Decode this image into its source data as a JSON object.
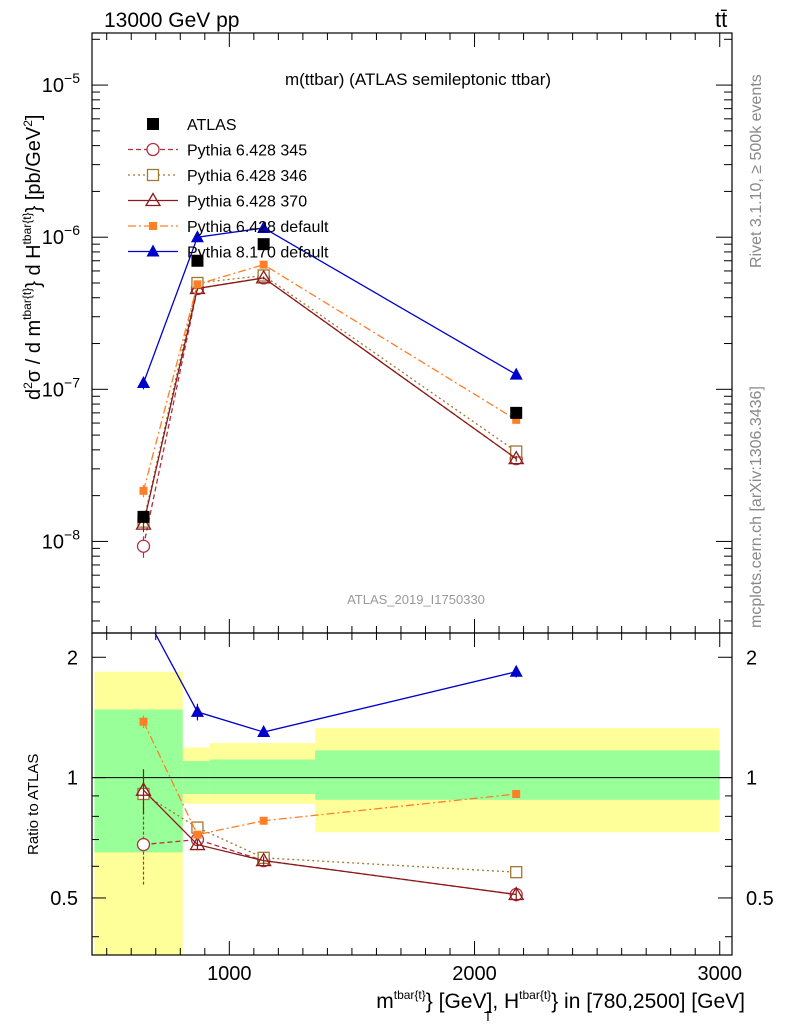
{
  "header": {
    "left": "13000 GeV pp",
    "right": "tt̄"
  },
  "side": {
    "top": "Rivet 3.1.10, ≥ 500k events",
    "bottom": "mcplots.cern.ch [arXiv:1306.3436]"
  },
  "chart_data": {
    "type": "scatter",
    "title": "m(ttbar) (ATLAS semileptonic ttbar)",
    "watermark": "ATLAS_2019_I1750330",
    "xlabel": "m^{tbar{t}} [GeV], H_T^{tbar{t}} in [780,2500] [GeV]",
    "ylabel": "d²σ / d m^{tbar{t}} d H_T^{tbar{t}} [pb/GeV²]",
    "ratio_ylabel": "Ratio to ATLAS",
    "xlim": [
      440,
      3050
    ],
    "ylim": [
      2.5e-09,
      2.2e-05
    ],
    "yscale": "log",
    "ratio_ylim": [
      0.36,
      2.3
    ],
    "x_ticks": [
      1000,
      2000,
      3000
    ],
    "bins": [
      [
        450,
        810
      ],
      [
        810,
        920
      ],
      [
        920,
        1350
      ],
      [
        1350,
        3000
      ]
    ],
    "x": [
      650,
      870,
      1140,
      2170
    ],
    "band_inner": [
      [
        0.65,
        1.48
      ],
      [
        0.91,
        1.1
      ],
      [
        0.91,
        1.11
      ],
      [
        0.88,
        1.17
      ]
    ],
    "band_outer": [
      [
        0.0,
        1.84
      ],
      [
        0.86,
        1.19
      ],
      [
        0.86,
        1.22
      ],
      [
        0.73,
        1.33
      ]
    ],
    "legend_placement": "top-left",
    "series": [
      {
        "name": "ATLAS",
        "color": "#000000",
        "marker": "square",
        "dash": "",
        "values": [
          1.45e-08,
          7e-07,
          9e-07,
          7e-08
        ],
        "errors": [
          0,
          0,
          0,
          0
        ],
        "ratio": [
          1,
          1,
          1,
          1
        ],
        "ratio_errors": [
          0,
          0,
          0,
          0
        ]
      },
      {
        "name": "Pythia 6.428 345",
        "color": "#b03040",
        "marker": "circle-open",
        "dash": "5,3",
        "values": [
          9.3e-09,
          4.6e-07,
          5.4e-07,
          3.5e-08
        ],
        "errors": [
          1.5e-09,
          1.5e-08,
          1.2e-08,
          1.5e-09
        ],
        "ratio": [
          0.68,
          0.7,
          0.62,
          0.51
        ],
        "ratio_errors": [
          0.14,
          0.02,
          0.015,
          0.015
        ]
      },
      {
        "name": "Pythia 6.428 346",
        "color": "#a07830",
        "marker": "square-open",
        "dash": "2,3",
        "values": [
          1.35e-08,
          5e-07,
          5.6e-07,
          3.9e-08
        ],
        "errors": [
          1.2e-09,
          1.5e-08,
          1.2e-08,
          1.5e-09
        ],
        "ratio": [
          0.91,
          0.75,
          0.63,
          0.58
        ],
        "ratio_errors": [
          0.08,
          0.02,
          0.015,
          0.015
        ]
      },
      {
        "name": "Pythia 6.428 370",
        "color": "#8b1a1a",
        "marker": "triangle-open",
        "dash": "",
        "values": [
          1.3e-08,
          4.6e-07,
          5.4e-07,
          3.5e-08
        ],
        "errors": [
          1.5e-09,
          1.5e-08,
          1.2e-08,
          1.5e-09
        ],
        "ratio": [
          0.93,
          0.68,
          0.62,
          0.51
        ],
        "ratio_errors": [
          0.12,
          0.02,
          0.015,
          0.02
        ]
      },
      {
        "name": "Pythia 6.428 default",
        "color": "#ff7f27",
        "marker": "square-small",
        "dash": "8,3,2,3",
        "values": [
          2.15e-08,
          4.9e-07,
          6.6e-07,
          6.3e-08
        ],
        "errors": [
          2e-09,
          1.5e-08,
          1.5e-08,
          2e-09
        ],
        "ratio": [
          1.38,
          0.72,
          0.78,
          0.91
        ],
        "ratio_errors": [
          0.05,
          0.02,
          0.01,
          0.015
        ]
      },
      {
        "name": "Pythia 8.170 default",
        "color": "#0000cc",
        "marker": "triangle",
        "dash": "",
        "values": [
          1.1e-07,
          1e-06,
          1.15e-06,
          1.25e-07
        ],
        "errors": [
          1e-08,
          3e-08,
          2.5e-08,
          4e-09
        ],
        "ratio": [
          2.6,
          1.46,
          1.3,
          1.84
        ],
        "ratio_errors": [
          0.2,
          0.07,
          0.03,
          0.06
        ]
      }
    ]
  }
}
